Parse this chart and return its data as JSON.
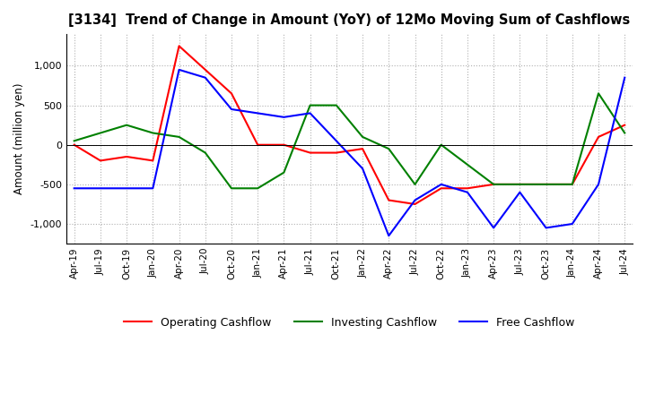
{
  "title": "[3134]  Trend of Change in Amount (YoY) of 12Mo Moving Sum of Cashflows",
  "ylabel": "Amount (million yen)",
  "ylim": [
    -1250,
    1400
  ],
  "yticks": [
    -1000,
    -500,
    0,
    500,
    1000
  ],
  "x_labels": [
    "Apr-19",
    "Jul-19",
    "Oct-19",
    "Jan-20",
    "Apr-20",
    "Jul-20",
    "Oct-20",
    "Jan-21",
    "Apr-21",
    "Jul-21",
    "Oct-21",
    "Jan-22",
    "Apr-22",
    "Jul-22",
    "Oct-22",
    "Jan-23",
    "Apr-23",
    "Jul-23",
    "Oct-23",
    "Jan-24",
    "Apr-24",
    "Jul-24"
  ],
  "operating": [
    0,
    -200,
    -150,
    -200,
    1250,
    950,
    650,
    0,
    0,
    -100,
    -100,
    -50,
    -700,
    -750,
    -550,
    -550,
    -500,
    -500,
    -500,
    -500,
    100,
    250
  ],
  "investing": [
    50,
    150,
    250,
    150,
    100,
    -100,
    -550,
    -550,
    -350,
    500,
    500,
    100,
    -50,
    -500,
    0,
    -250,
    -500,
    -500,
    -500,
    -500,
    650,
    150
  ],
  "free": [
    -550,
    -550,
    -550,
    -550,
    950,
    850,
    450,
    400,
    350,
    400,
    50,
    -300,
    -1150,
    -700,
    -500,
    -600,
    -1050,
    -600,
    -1050,
    -1000,
    -500,
    850
  ],
  "colors": {
    "operating": "#ff0000",
    "investing": "#008000",
    "free": "#0000ff"
  },
  "legend_labels": [
    "Operating Cashflow",
    "Investing Cashflow",
    "Free Cashflow"
  ],
  "background_color": "#ffffff",
  "grid_color": "#b0b0b0",
  "grid_style": ":"
}
